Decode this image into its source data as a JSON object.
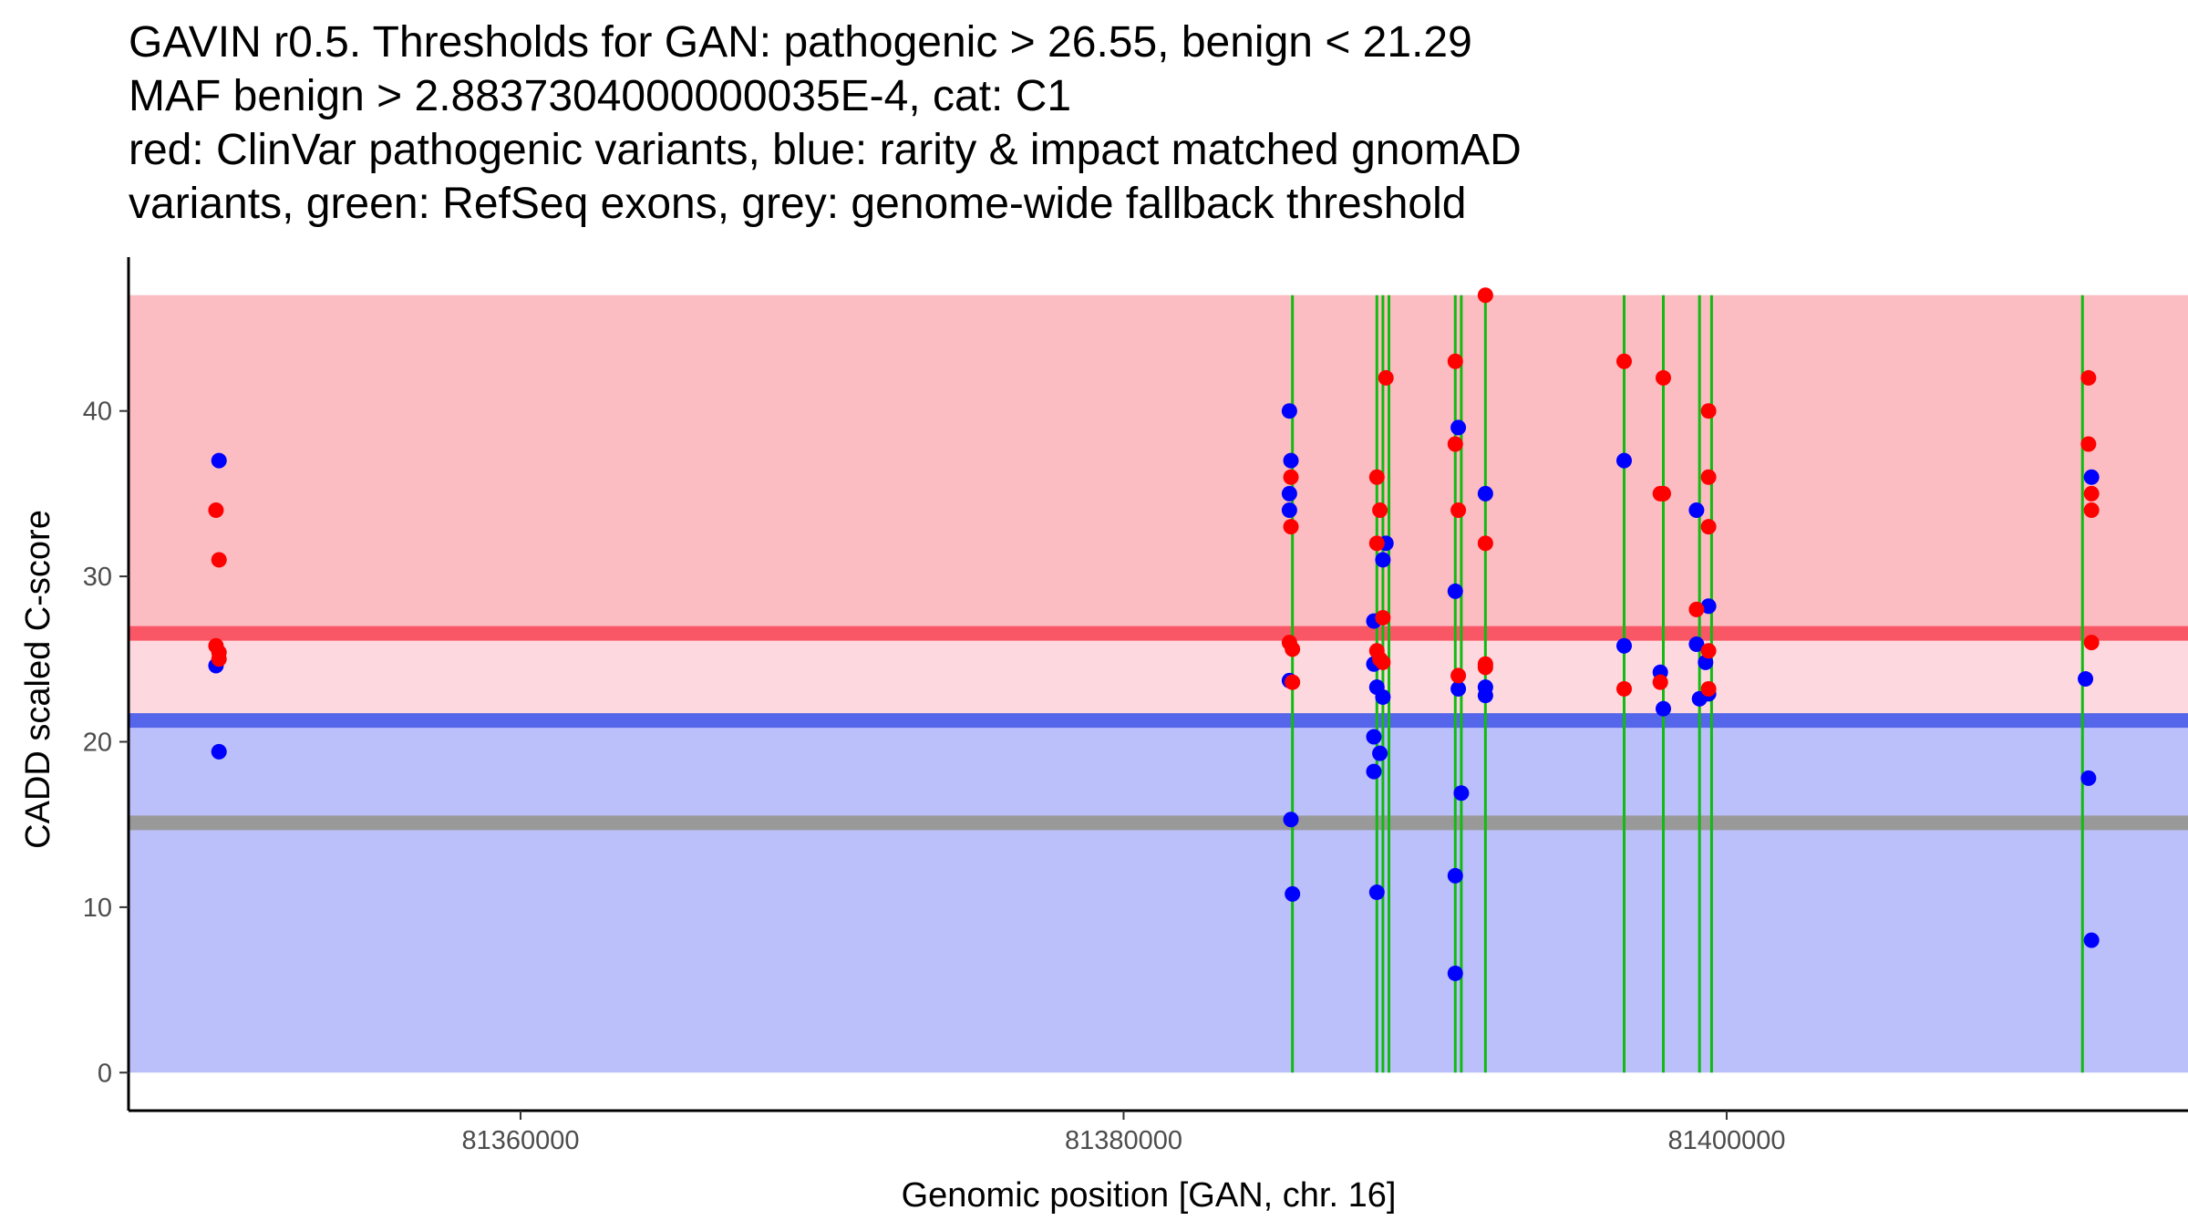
{
  "chart_data": {
    "type": "scatter",
    "title_lines": [
      "GAVIN r0.5. Thresholds for GAN: pathogenic > 26.55, benign < 21.29",
      "MAF benign > 2.8837304000000035E-4, cat: C1",
      "red: ClinVar pathogenic variants, blue: rarity & impact matched gnomAD",
      "variants, green: RefSeq exons, grey: genome-wide fallback threshold"
    ],
    "xlabel": "Genomic position [GAN, chr. 16]",
    "ylabel": "CADD scaled C-score",
    "xlim": [
      81347000,
      81415300
    ],
    "ylim": [
      -2.3,
      49.3
    ],
    "x_ticks": [
      81360000,
      81380000,
      81400000
    ],
    "x_tick_labels": [
      "81360000",
      "81380000",
      "81400000"
    ],
    "y_ticks": [
      0,
      10,
      20,
      30,
      40
    ],
    "y_tick_labels": [
      "0",
      "10",
      "20",
      "30",
      "40"
    ],
    "thresholds": {
      "pathogenic": 26.55,
      "benign": 21.29,
      "genome_wide_fallback": 15.1,
      "max": 47
    },
    "colors": {
      "pathogenic_region": "#fbbcc2",
      "mid_region": "#fdd9df",
      "benign_region": "#bbc0fa",
      "pathogenic_line": "#fa5766",
      "benign_line": "#5566ea",
      "fallback_line": "#999999",
      "exon": "#11bb11",
      "clinvar": "#ff0000",
      "gnomad": "#0000ff"
    },
    "exons": [
      81385600,
      81388400,
      81388600,
      81388800,
      81391000,
      81391200,
      81392000,
      81396600,
      81397900,
      81399100,
      81399500,
      81411800
    ],
    "series": [
      {
        "name": "rarity & impact matched gnomAD variants",
        "color": "#0000ff",
        "points": [
          [
            81350000,
            37
          ],
          [
            81349900,
            24.6
          ],
          [
            81350000,
            19.4
          ],
          [
            81385500,
            40
          ],
          [
            81385550,
            37
          ],
          [
            81385500,
            35
          ],
          [
            81385500,
            34
          ],
          [
            81385500,
            23.7
          ],
          [
            81385550,
            15.3
          ],
          [
            81385600,
            10.8
          ],
          [
            81388300,
            27.3
          ],
          [
            81388300,
            24.7
          ],
          [
            81388300,
            20.3
          ],
          [
            81388300,
            18.2
          ],
          [
            81388400,
            23.3
          ],
          [
            81388400,
            10.9
          ],
          [
            81388500,
            19.3
          ],
          [
            81388600,
            22.7
          ],
          [
            81388700,
            32
          ],
          [
            81388600,
            31
          ],
          [
            81391000,
            29.1
          ],
          [
            81391000,
            11.9
          ],
          [
            81391000,
            6
          ],
          [
            81391100,
            39
          ],
          [
            81391100,
            23.2
          ],
          [
            81391200,
            16.9
          ],
          [
            81392000,
            35
          ],
          [
            81392000,
            23.3
          ],
          [
            81392000,
            22.8
          ],
          [
            81396600,
            37
          ],
          [
            81396600,
            25.8
          ],
          [
            81397800,
            24.2
          ],
          [
            81397900,
            22
          ],
          [
            81399000,
            34
          ],
          [
            81399000,
            25.9
          ],
          [
            81399100,
            22.6
          ],
          [
            81399400,
            28.2
          ],
          [
            81399300,
            24.8
          ],
          [
            81399400,
            22.9
          ],
          [
            81411900,
            23.8
          ],
          [
            81412000,
            17.8
          ],
          [
            81412100,
            36
          ],
          [
            81412100,
            8
          ]
        ]
      },
      {
        "name": "ClinVar pathogenic variants",
        "color": "#ff0000",
        "points": [
          [
            81349900,
            34
          ],
          [
            81350000,
            31
          ],
          [
            81349900,
            25.8
          ],
          [
            81350000,
            25.4
          ],
          [
            81350000,
            25
          ],
          [
            81385550,
            36
          ],
          [
            81385550,
            33
          ],
          [
            81385500,
            26
          ],
          [
            81385600,
            25.6
          ],
          [
            81385600,
            23.6
          ],
          [
            81388400,
            36
          ],
          [
            81388400,
            32
          ],
          [
            81388500,
            34
          ],
          [
            81388700,
            42
          ],
          [
            81388600,
            27.5
          ],
          [
            81388400,
            25.5
          ],
          [
            81388500,
            25
          ],
          [
            81388600,
            24.8
          ],
          [
            81391000,
            43
          ],
          [
            81391000,
            38
          ],
          [
            81391100,
            34
          ],
          [
            81391100,
            24
          ],
          [
            81392000,
            47
          ],
          [
            81392000,
            32
          ],
          [
            81392000,
            24.7
          ],
          [
            81392000,
            24.5
          ],
          [
            81396600,
            43
          ],
          [
            81396600,
            23.2
          ],
          [
            81397800,
            35
          ],
          [
            81397900,
            35
          ],
          [
            81397900,
            42
          ],
          [
            81397800,
            23.6
          ],
          [
            81399000,
            28
          ],
          [
            81399400,
            40
          ],
          [
            81399400,
            36
          ],
          [
            81399400,
            33
          ],
          [
            81399400,
            25.5
          ],
          [
            81399400,
            23.2
          ],
          [
            81412000,
            42
          ],
          [
            81412000,
            38
          ],
          [
            81412100,
            35
          ],
          [
            81412100,
            34
          ],
          [
            81412100,
            26
          ]
        ]
      }
    ]
  }
}
